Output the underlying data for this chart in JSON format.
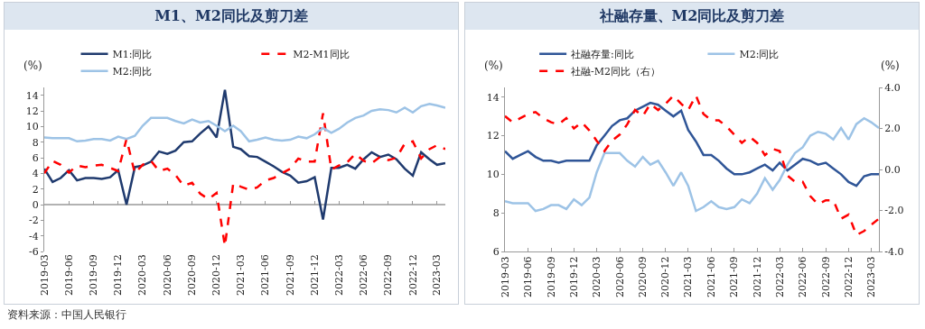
{
  "chart_data": [
    {
      "type": "line",
      "title": "M1、M2同比及剪刀差",
      "ylabel": "(%)",
      "x": [
        "2019-03",
        "2019-04",
        "2019-05",
        "2019-06",
        "2019-07",
        "2019-08",
        "2019-09",
        "2019-10",
        "2019-11",
        "2019-12",
        "2020-01",
        "2020-02",
        "2020-03",
        "2020-04",
        "2020-05",
        "2020-06",
        "2020-07",
        "2020-08",
        "2020-09",
        "2020-10",
        "2020-11",
        "2020-12",
        "2021-01",
        "2021-02",
        "2021-03",
        "2021-04",
        "2021-05",
        "2021-06",
        "2021-07",
        "2021-08",
        "2021-09",
        "2021-10",
        "2021-11",
        "2021-12",
        "2022-01",
        "2022-02",
        "2022-03",
        "2022-04",
        "2022-05",
        "2022-06",
        "2022-07",
        "2022-08",
        "2022-09",
        "2022-10",
        "2022-11",
        "2022-12",
        "2023-01",
        "2023-02",
        "2023-03",
        "2023-04"
      ],
      "series": [
        {
          "name": "M1:同比",
          "color": "#1f3a6e",
          "line_style": "solid",
          "values": [
            4.6,
            2.9,
            3.4,
            4.4,
            3.1,
            3.4,
            3.4,
            3.3,
            3.5,
            4.4,
            0.0,
            4.8,
            5.0,
            5.5,
            6.8,
            6.5,
            6.9,
            8.0,
            8.1,
            9.1,
            10.0,
            8.6,
            14.7,
            7.4,
            7.1,
            6.2,
            6.1,
            5.5,
            4.9,
            4.2,
            3.7,
            2.8,
            3.0,
            3.5,
            -1.9,
            4.7,
            4.7,
            5.1,
            4.6,
            5.8,
            6.7,
            6.1,
            6.4,
            5.8,
            4.6,
            3.7,
            6.7,
            5.8,
            5.1,
            5.3
          ]
        },
        {
          "name": "M2-M1同比",
          "color": "#ff0000",
          "line_style": "dashed",
          "values": [
            4.0,
            5.6,
            5.1,
            4.1,
            5.0,
            4.8,
            5.0,
            5.1,
            4.7,
            4.3,
            8.4,
            4.0,
            5.1,
            5.6,
            4.3,
            4.6,
            3.8,
            2.4,
            2.8,
            1.4,
            0.7,
            1.5,
            -5.3,
            2.7,
            2.3,
            1.9,
            2.2,
            3.1,
            3.4,
            4.0,
            4.6,
            5.9,
            5.5,
            5.5,
            11.7,
            4.5,
            5.0,
            5.4,
            6.5,
            5.6,
            5.3,
            6.1,
            5.7,
            6.0,
            7.8,
            8.1,
            5.9,
            7.1,
            7.6,
            7.1
          ]
        },
        {
          "name": "M2:同比",
          "color": "#9dc3e6",
          "line_style": "solid",
          "values": [
            8.6,
            8.5,
            8.5,
            8.5,
            8.1,
            8.2,
            8.4,
            8.4,
            8.2,
            8.7,
            8.4,
            8.8,
            10.1,
            11.1,
            11.1,
            11.1,
            10.7,
            10.4,
            10.9,
            10.5,
            10.7,
            10.1,
            9.4,
            10.1,
            9.4,
            8.1,
            8.3,
            8.6,
            8.3,
            8.2,
            8.3,
            8.7,
            8.5,
            9.0,
            9.8,
            9.2,
            9.7,
            10.5,
            11.1,
            11.4,
            12.0,
            12.2,
            12.1,
            11.8,
            12.4,
            11.8,
            12.6,
            12.9,
            12.7,
            12.4
          ]
        }
      ],
      "xlim": [
        "2019-03",
        "2023-04"
      ],
      "xticks": [
        "2019-03",
        "2019-06",
        "2019-09",
        "2019-12",
        "2020-03",
        "2020-06",
        "2020-09",
        "2020-12",
        "2021-03",
        "2021-06",
        "2021-09",
        "2021-12",
        "2022-03",
        "2022-06",
        "2022-09",
        "2022-12",
        "2023-03"
      ],
      "ylim": [
        -6,
        15
      ],
      "ref_lines": [
        {
          "axis": "y",
          "value": 0,
          "color": "#999999",
          "line_style": "solid"
        }
      ],
      "yticks": [
        -6,
        -4,
        -2,
        0,
        2,
        4,
        6,
        8,
        10,
        12,
        14
      ],
      "grid": false,
      "legend": "top",
      "marker": "none",
      "annotations": [
        "资料来源：中国人民银行"
      ]
    },
    {
      "type": "line",
      "title": "社融存量、M2同比及剪刀差",
      "ylabel": "(%)",
      "y2label": "(%)",
      "x": [
        "2019-03",
        "2019-04",
        "2019-05",
        "2019-06",
        "2019-07",
        "2019-08",
        "2019-09",
        "2019-10",
        "2019-11",
        "2019-12",
        "2020-01",
        "2020-02",
        "2020-03",
        "2020-04",
        "2020-05",
        "2020-06",
        "2020-07",
        "2020-08",
        "2020-09",
        "2020-10",
        "2020-11",
        "2020-12",
        "2021-01",
        "2021-02",
        "2021-03",
        "2021-04",
        "2021-05",
        "2021-06",
        "2021-07",
        "2021-08",
        "2021-09",
        "2021-10",
        "2021-11",
        "2021-12",
        "2022-01",
        "2022-02",
        "2022-03",
        "2022-04",
        "2022-05",
        "2022-06",
        "2022-07",
        "2022-08",
        "2022-09",
        "2022-10",
        "2022-11",
        "2022-12",
        "2023-01",
        "2023-02",
        "2023-03",
        "2023-04"
      ],
      "series": [
        {
          "name": "社融存量:同比",
          "color": "#2f5597",
          "line_style": "solid",
          "values": [
            11.2,
            10.8,
            11.0,
            11.2,
            10.9,
            10.7,
            10.7,
            10.6,
            10.7,
            10.7,
            10.7,
            10.7,
            11.5,
            12.0,
            12.5,
            12.8,
            12.9,
            13.3,
            13.5,
            13.7,
            13.6,
            13.3,
            13.0,
            13.3,
            12.3,
            11.7,
            11.0,
            11.0,
            10.7,
            10.3,
            10.0,
            10.0,
            10.1,
            10.3,
            10.5,
            10.2,
            10.6,
            10.2,
            10.5,
            10.8,
            10.7,
            10.5,
            10.6,
            10.3,
            10.0,
            9.6,
            9.4,
            9.9,
            10.0,
            10.0
          ]
        },
        {
          "name": "M2:同比",
          "color": "#9dc3e6",
          "line_style": "solid",
          "values": [
            8.6,
            8.5,
            8.5,
            8.5,
            8.1,
            8.2,
            8.4,
            8.4,
            8.2,
            8.7,
            8.4,
            8.8,
            10.1,
            11.1,
            11.1,
            11.1,
            10.7,
            10.4,
            10.9,
            10.5,
            10.7,
            10.1,
            9.4,
            10.1,
            9.4,
            8.1,
            8.3,
            8.6,
            8.3,
            8.2,
            8.3,
            8.7,
            8.5,
            9.0,
            9.8,
            9.2,
            9.7,
            10.5,
            11.1,
            11.4,
            12.0,
            12.2,
            12.1,
            11.8,
            12.4,
            11.8,
            12.6,
            12.9,
            12.7,
            12.4
          ]
        },
        {
          "name": "社融-M2同比（右）",
          "color": "#ff0000",
          "line_style": "dashed",
          "axis": "y2",
          "values": [
            2.6,
            2.3,
            2.5,
            2.7,
            2.8,
            2.5,
            2.3,
            2.2,
            2.5,
            2.0,
            2.3,
            1.9,
            1.4,
            0.9,
            1.4,
            1.7,
            2.2,
            2.9,
            2.6,
            3.2,
            2.9,
            3.2,
            3.6,
            3.2,
            2.9,
            3.6,
            2.7,
            2.4,
            2.4,
            2.1,
            1.7,
            1.3,
            1.6,
            1.3,
            0.7,
            1.0,
            0.9,
            -0.3,
            -0.6,
            -0.6,
            -1.3,
            -1.7,
            -1.5,
            -1.5,
            -2.4,
            -2.2,
            -3.2,
            -3.0,
            -2.7,
            -2.4
          ]
        }
      ],
      "xlim": [
        "2019-03",
        "2023-04"
      ],
      "xticks": [
        "2019-03",
        "2019-06",
        "2019-09",
        "2019-12",
        "2020-03",
        "2020-06",
        "2020-09",
        "2020-12",
        "2021-03",
        "2021-06",
        "2021-09",
        "2021-12",
        "2022-03",
        "2022-06",
        "2022-09",
        "2022-12",
        "2023-03"
      ],
      "ylim": [
        6,
        14.5
      ],
      "yticks": [
        6,
        8,
        10,
        12,
        14
      ],
      "y2lim": [
        -4,
        4
      ],
      "y2ticks": [
        {
          "value": -4,
          "label": "-4.0"
        },
        {
          "value": -2,
          "label": "-2.0"
        },
        {
          "value": 0,
          "label": "0.0"
        },
        {
          "value": 2,
          "label": "2.0"
        },
        {
          "value": 4,
          "label": "4.0"
        }
      ],
      "grid": false,
      "legend": "top",
      "marker": "none"
    }
  ]
}
